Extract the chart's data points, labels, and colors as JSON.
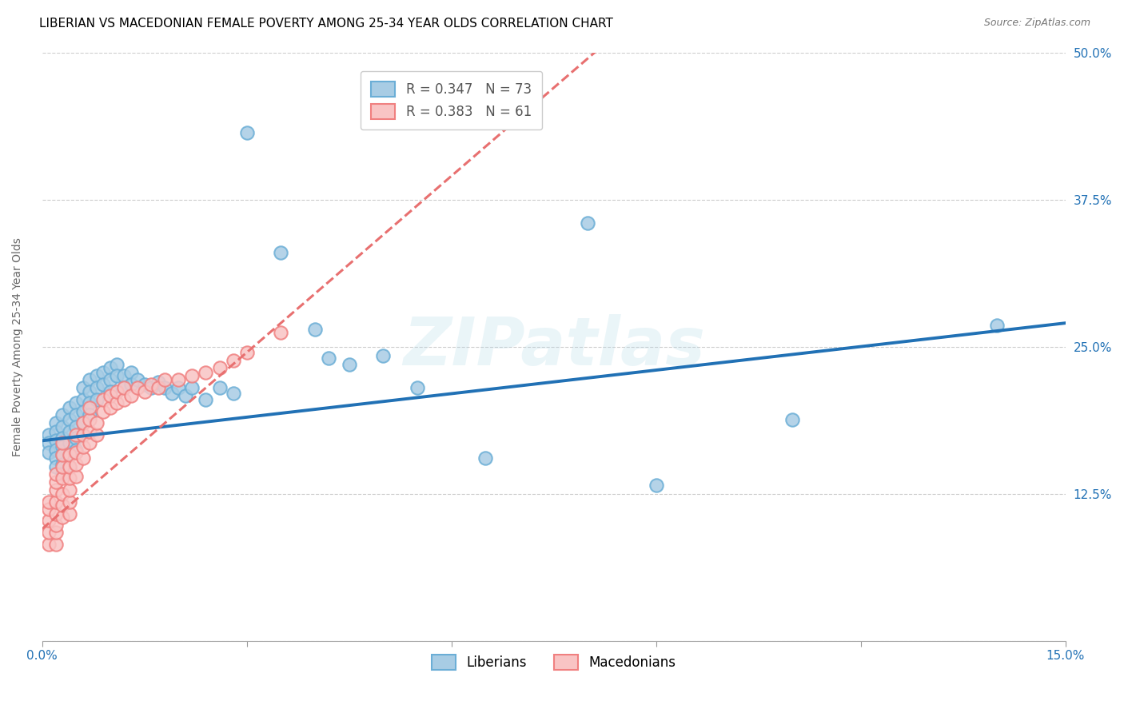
{
  "title": "LIBERIAN VS MACEDONIAN FEMALE POVERTY AMONG 25-34 YEAR OLDS CORRELATION CHART",
  "source": "Source: ZipAtlas.com",
  "xlabel": "",
  "ylabel": "Female Poverty Among 25-34 Year Olds",
  "xlim": [
    0,
    0.15
  ],
  "ylim": [
    0,
    0.5
  ],
  "xticks": [
    0.0,
    0.03,
    0.06,
    0.09,
    0.12,
    0.15
  ],
  "yticks": [
    0.0,
    0.125,
    0.25,
    0.375,
    0.5
  ],
  "yticklabels_right": [
    "",
    "12.5%",
    "25.0%",
    "37.5%",
    "50.0%"
  ],
  "liberian_R": 0.347,
  "liberian_N": 73,
  "macedonian_R": 0.383,
  "macedonian_N": 61,
  "liberian_color_face": "#a8cce4",
  "liberian_color_edge": "#6baed6",
  "macedonian_color_face": "#f9c4c4",
  "macedonian_color_edge": "#f08080",
  "liberian_line_color": "#2171b5",
  "macedonian_line_color": "#e87070",
  "watermark": "ZIPatlas",
  "title_fontsize": 11,
  "axis_label_fontsize": 10,
  "tick_fontsize": 11,
  "liberian_x": [
    0.001,
    0.001,
    0.001,
    0.002,
    0.002,
    0.002,
    0.002,
    0.002,
    0.002,
    0.003,
    0.003,
    0.003,
    0.003,
    0.003,
    0.003,
    0.003,
    0.004,
    0.004,
    0.004,
    0.004,
    0.004,
    0.004,
    0.005,
    0.005,
    0.005,
    0.005,
    0.005,
    0.006,
    0.006,
    0.006,
    0.006,
    0.007,
    0.007,
    0.007,
    0.007,
    0.008,
    0.008,
    0.008,
    0.009,
    0.009,
    0.01,
    0.01,
    0.01,
    0.011,
    0.011,
    0.012,
    0.012,
    0.013,
    0.013,
    0.014,
    0.015,
    0.016,
    0.017,
    0.018,
    0.019,
    0.02,
    0.021,
    0.022,
    0.024,
    0.026,
    0.028,
    0.03,
    0.035,
    0.04,
    0.042,
    0.045,
    0.05,
    0.055,
    0.065,
    0.08,
    0.09,
    0.11,
    0.14
  ],
  "liberian_y": [
    0.175,
    0.168,
    0.16,
    0.185,
    0.178,
    0.17,
    0.162,
    0.155,
    0.148,
    0.192,
    0.182,
    0.172,
    0.165,
    0.158,
    0.15,
    0.142,
    0.198,
    0.188,
    0.178,
    0.168,
    0.158,
    0.148,
    0.202,
    0.192,
    0.182,
    0.172,
    0.162,
    0.215,
    0.205,
    0.195,
    0.185,
    0.222,
    0.212,
    0.202,
    0.192,
    0.225,
    0.215,
    0.205,
    0.228,
    0.218,
    0.232,
    0.222,
    0.212,
    0.235,
    0.225,
    0.225,
    0.215,
    0.228,
    0.218,
    0.222,
    0.218,
    0.215,
    0.22,
    0.215,
    0.21,
    0.215,
    0.208,
    0.215,
    0.205,
    0.215,
    0.21,
    0.432,
    0.33,
    0.265,
    0.24,
    0.235,
    0.242,
    0.215,
    0.155,
    0.355,
    0.132,
    0.188,
    0.268
  ],
  "macedonian_x": [
    0.001,
    0.001,
    0.001,
    0.001,
    0.001,
    0.002,
    0.002,
    0.002,
    0.002,
    0.002,
    0.002,
    0.002,
    0.002,
    0.003,
    0.003,
    0.003,
    0.003,
    0.003,
    0.003,
    0.003,
    0.004,
    0.004,
    0.004,
    0.004,
    0.004,
    0.004,
    0.005,
    0.005,
    0.005,
    0.005,
    0.006,
    0.006,
    0.006,
    0.006,
    0.007,
    0.007,
    0.007,
    0.007,
    0.008,
    0.008,
    0.009,
    0.009,
    0.01,
    0.01,
    0.011,
    0.011,
    0.012,
    0.012,
    0.013,
    0.014,
    0.015,
    0.016,
    0.017,
    0.018,
    0.02,
    0.022,
    0.024,
    0.026,
    0.028,
    0.03,
    0.035
  ],
  "macedonian_y": [
    0.082,
    0.092,
    0.102,
    0.112,
    0.118,
    0.082,
    0.092,
    0.098,
    0.108,
    0.118,
    0.128,
    0.135,
    0.142,
    0.105,
    0.115,
    0.125,
    0.138,
    0.148,
    0.158,
    0.168,
    0.108,
    0.118,
    0.128,
    0.138,
    0.148,
    0.158,
    0.14,
    0.15,
    0.16,
    0.175,
    0.155,
    0.165,
    0.175,
    0.185,
    0.168,
    0.178,
    0.188,
    0.198,
    0.175,
    0.185,
    0.195,
    0.205,
    0.198,
    0.208,
    0.202,
    0.212,
    0.205,
    0.215,
    0.208,
    0.215,
    0.212,
    0.218,
    0.215,
    0.222,
    0.222,
    0.225,
    0.228,
    0.232,
    0.238,
    0.245,
    0.262
  ],
  "lib_line_x0": 0.0,
  "lib_line_y0": 0.17,
  "lib_line_x1": 0.15,
  "lib_line_y1": 0.27,
  "mac_line_x0": 0.0,
  "mac_line_y0": 0.095,
  "mac_line_x1": 0.035,
  "mac_line_y1": 0.27
}
